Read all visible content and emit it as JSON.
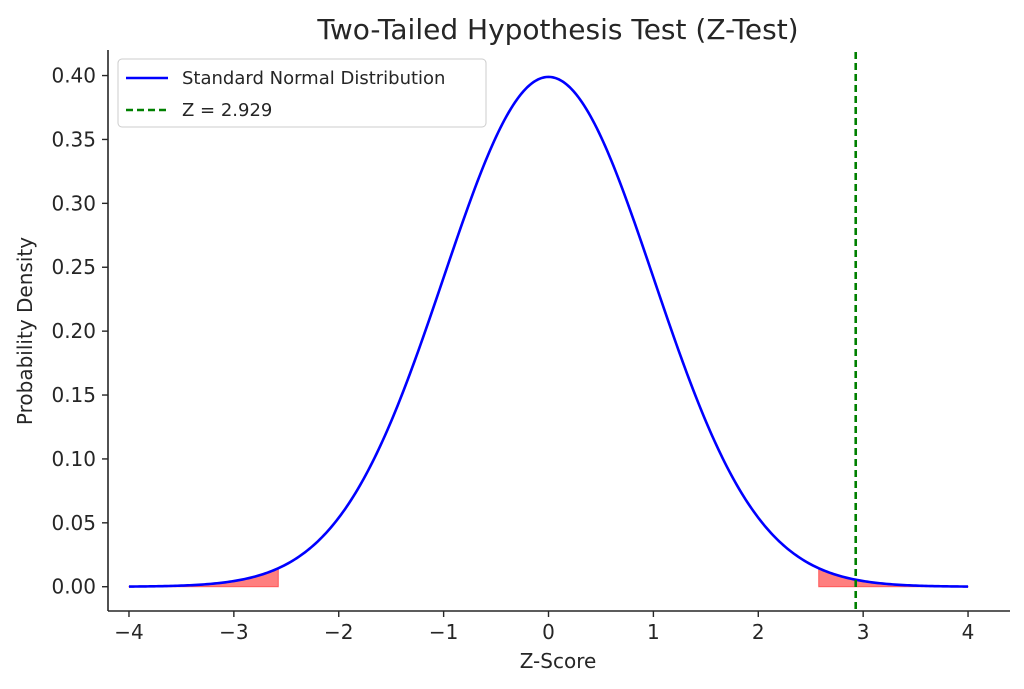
{
  "chart_data": {
    "type": "line",
    "title": "Two-Tailed Hypothesis Test (Z-Test)",
    "xlabel": "Z-Score",
    "ylabel": "Probability Density",
    "xlim": [
      -4.2,
      4.4
    ],
    "ylim": [
      -0.019,
      0.42
    ],
    "xticks": [
      -4,
      -3,
      -2,
      -1,
      0,
      1,
      2,
      3,
      4
    ],
    "xtick_labels": [
      "−4",
      "−3",
      "−2",
      "−1",
      "0",
      "1",
      "2",
      "3",
      "4"
    ],
    "yticks": [
      0.0,
      0.05,
      0.1,
      0.15,
      0.2,
      0.25,
      0.3,
      0.35,
      0.4
    ],
    "ytick_labels": [
      "0.00",
      "0.05",
      "0.10",
      "0.15",
      "0.20",
      "0.25",
      "0.30",
      "0.35",
      "0.40"
    ],
    "grid": false,
    "legend_position": "top-left",
    "series": [
      {
        "name": "Standard Normal Distribution",
        "function": "standard normal pdf",
        "x_range": [
          -4,
          4
        ],
        "color": "#0000ff",
        "style": "solid"
      },
      {
        "name": "Z = 2.929",
        "kind": "vertical-line",
        "x": 2.929,
        "color": "#008000",
        "style": "dashed"
      }
    ],
    "shaded_regions": [
      {
        "x_from": -4,
        "x_to": -2.576,
        "color": "#ff0000",
        "opacity": 0.5
      },
      {
        "x_from": 2.576,
        "x_to": 4,
        "color": "#ff0000",
        "opacity": 0.5
      }
    ]
  }
}
